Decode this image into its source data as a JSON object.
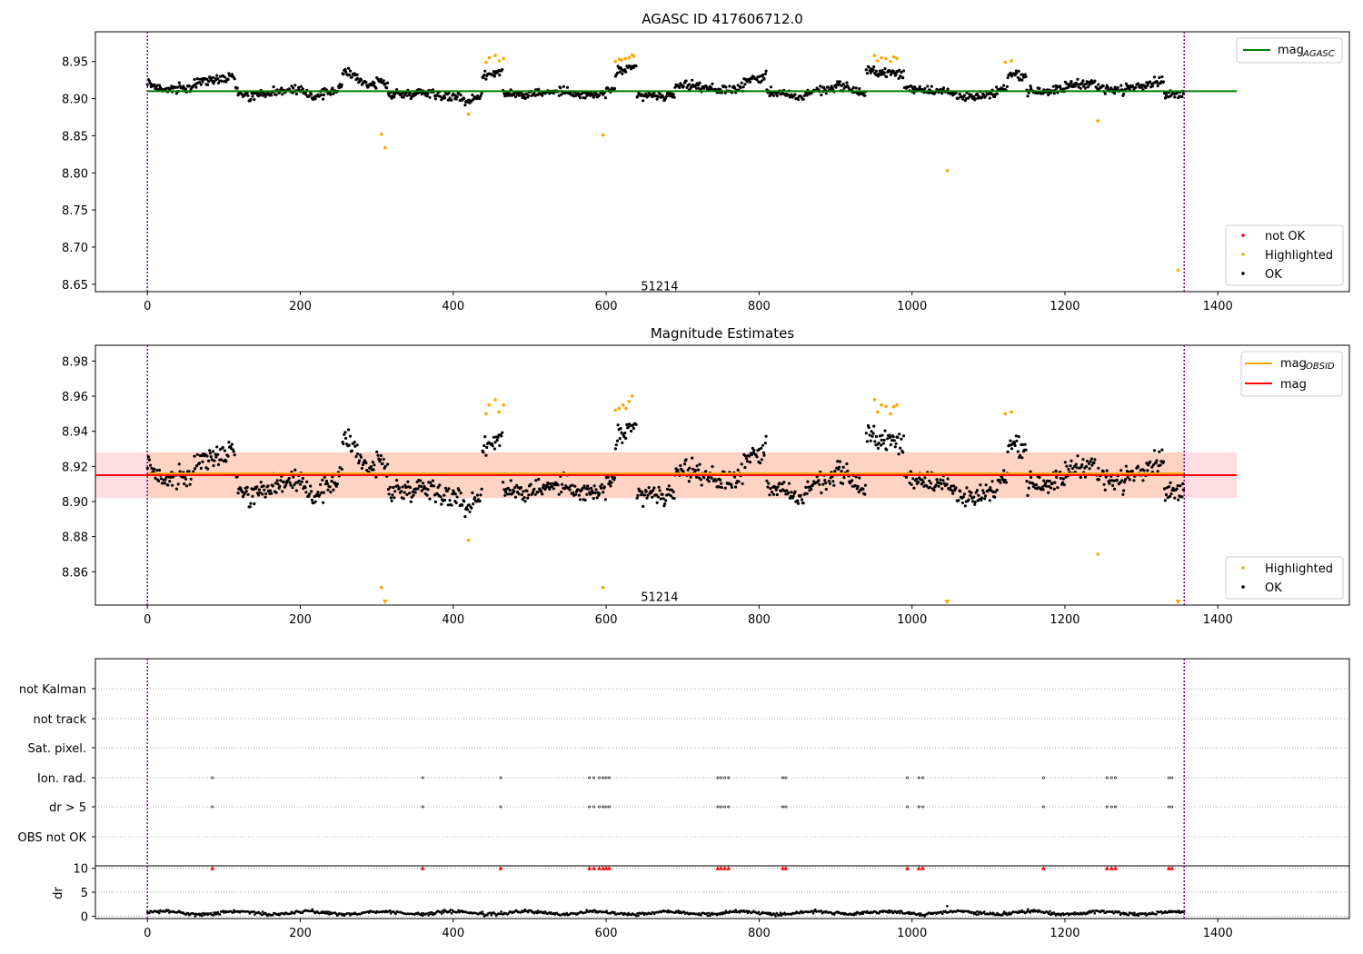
{
  "chart_data": [
    {
      "type": "scatter",
      "title": "AGASC ID 417606712.0",
      "xlim": [
        -68,
        1572
      ],
      "ylim": [
        8.64,
        8.99
      ],
      "xticks": [
        0,
        200,
        400,
        600,
        800,
        1000,
        1200,
        1400
      ],
      "yticks": [
        8.65,
        8.7,
        8.75,
        8.8,
        8.85,
        8.9,
        8.95
      ],
      "ytick_format": 2,
      "vlines": [
        0,
        1356
      ],
      "vline_color": "#800080",
      "annotation": {
        "text": "51214",
        "x": 675,
        "y": 8.648
      },
      "hline": {
        "name": "mag_AGASC",
        "label_main": "mag",
        "label_sub": "AGASC",
        "y": 8.91,
        "x_range": [
          0,
          1425
        ],
        "color": "#008000"
      },
      "legend_lines": [
        {
          "label_main": "mag",
          "label_sub": "AGASC",
          "color": "#008000"
        }
      ],
      "legend_points": [
        {
          "label": "not OK",
          "color": "#ff0000"
        },
        {
          "label": "Highlighted",
          "color": "#ffa500"
        },
        {
          "label": "OK",
          "color": "#000000"
        }
      ],
      "highlighted": [
        [
          306,
          8.852
        ],
        [
          311,
          8.834
        ],
        [
          420,
          8.879
        ],
        [
          443,
          8.949
        ],
        [
          447,
          8.955
        ],
        [
          455,
          8.958
        ],
        [
          460,
          8.951
        ],
        [
          466,
          8.954
        ],
        [
          596,
          8.851
        ],
        [
          612,
          8.95
        ],
        [
          617,
          8.953
        ],
        [
          620,
          8.952
        ],
        [
          625,
          8.954
        ],
        [
          630,
          8.955
        ],
        [
          634,
          8.959
        ],
        [
          636,
          8.957
        ],
        [
          951,
          8.958
        ],
        [
          955,
          8.951
        ],
        [
          960,
          8.955
        ],
        [
          966,
          8.954
        ],
        [
          972,
          8.95
        ],
        [
          976,
          8.956
        ],
        [
          980,
          8.954
        ],
        [
          1046,
          8.803
        ],
        [
          1122,
          8.949
        ],
        [
          1130,
          8.951
        ],
        [
          1243,
          8.87
        ],
        [
          1348,
          8.669
        ]
      ],
      "segments": [
        [
          0,
          20,
          8.922,
          8.912
        ],
        [
          20,
          60,
          8.912,
          8.915
        ],
        [
          60,
          115,
          8.92,
          8.932
        ],
        [
          115,
          135,
          8.912,
          8.9
        ],
        [
          135,
          175,
          8.905,
          8.91
        ],
        [
          175,
          215,
          8.912,
          8.908
        ],
        [
          215,
          255,
          8.902,
          8.915
        ],
        [
          255,
          275,
          8.935,
          8.932
        ],
        [
          275,
          300,
          8.925,
          8.915
        ],
        [
          300,
          315,
          8.928,
          8.915
        ],
        [
          315,
          360,
          8.905,
          8.908
        ],
        [
          360,
          415,
          8.91,
          8.9
        ],
        [
          415,
          438,
          8.895,
          8.905
        ],
        [
          438,
          465,
          8.93,
          8.938
        ],
        [
          465,
          560,
          8.905,
          8.91
        ],
        [
          560,
          600,
          8.905,
          8.905
        ],
        [
          600,
          612,
          8.912,
          8.912
        ],
        [
          612,
          640,
          8.935,
          8.942
        ],
        [
          640,
          690,
          8.905,
          8.902
        ],
        [
          690,
          740,
          8.92,
          8.915
        ],
        [
          740,
          780,
          8.91,
          8.915
        ],
        [
          780,
          810,
          8.925,
          8.93
        ],
        [
          810,
          860,
          8.91,
          8.9
        ],
        [
          860,
          900,
          8.908,
          8.915
        ],
        [
          900,
          940,
          8.92,
          8.905
        ],
        [
          940,
          990,
          8.938,
          8.932
        ],
        [
          990,
          1040,
          8.915,
          8.91
        ],
        [
          1040,
          1065,
          8.91,
          8.905
        ],
        [
          1065,
          1110,
          8.9,
          8.905
        ],
        [
          1110,
          1125,
          8.912,
          8.912
        ],
        [
          1125,
          1150,
          8.935,
          8.93
        ],
        [
          1150,
          1200,
          8.91,
          8.912
        ],
        [
          1200,
          1240,
          8.918,
          8.922
        ],
        [
          1240,
          1280,
          8.915,
          8.91
        ],
        [
          1280,
          1330,
          8.915,
          8.925
        ],
        [
          1330,
          1356,
          8.905,
          8.905
        ]
      ]
    },
    {
      "type": "scatter",
      "title": "Magnitude Estimates",
      "xlim": [
        -68,
        1572
      ],
      "ylim": [
        8.841,
        8.989
      ],
      "xticks": [
        0,
        200,
        400,
        600,
        800,
        1000,
        1200,
        1400
      ],
      "yticks": [
        8.86,
        8.88,
        8.9,
        8.92,
        8.94,
        8.96,
        8.98
      ],
      "ytick_format": 2,
      "vlines": [
        0,
        1356
      ],
      "vline_color": "#800080",
      "annotation": {
        "text": "51214",
        "x": 675,
        "y": 8.846
      },
      "band_outer": {
        "y_range": [
          8.902,
          8.928
        ],
        "x_range": [
          -68,
          1425
        ],
        "color": "#ffdde2"
      },
      "band_inner": {
        "y_range": [
          8.902,
          8.928
        ],
        "x_range": [
          0,
          1356
        ],
        "color": "#fdd3c3"
      },
      "mag_line": {
        "name": "mag",
        "y": 8.915,
        "x_range": [
          -68,
          1425
        ],
        "color": "#ff0000"
      },
      "mag_obsid_line": {
        "name": "mag_OBSID",
        "y": 8.916,
        "x_range": [
          0,
          1356
        ],
        "color": "#ffa500"
      },
      "legend_lines": [
        {
          "label_main": "mag",
          "label_sub": "OBSID",
          "color": "#ffa500"
        },
        {
          "label_main": "mag",
          "label_sub": "",
          "color": "#ff0000"
        }
      ],
      "legend_points": [
        {
          "label": "Highlighted",
          "color": "#ffa500"
        },
        {
          "label": "OK",
          "color": "#000000"
        }
      ],
      "highlighted": [
        [
          306,
          8.851
        ],
        [
          311,
          8.842
        ],
        [
          420,
          8.878
        ],
        [
          443,
          8.95
        ],
        [
          447,
          8.955
        ],
        [
          455,
          8.958
        ],
        [
          460,
          8.951
        ],
        [
          466,
          8.955
        ],
        [
          596,
          8.851
        ],
        [
          612,
          8.952
        ],
        [
          617,
          8.953
        ],
        [
          622,
          8.955
        ],
        [
          626,
          8.953
        ],
        [
          630,
          8.957
        ],
        [
          634,
          8.96
        ],
        [
          951,
          8.958
        ],
        [
          955,
          8.951
        ],
        [
          960,
          8.955
        ],
        [
          966,
          8.954
        ],
        [
          972,
          8.95
        ],
        [
          976,
          8.954
        ],
        [
          980,
          8.955
        ],
        [
          1046,
          8.842
        ],
        [
          1122,
          8.95
        ],
        [
          1130,
          8.951
        ],
        [
          1243,
          8.87
        ],
        [
          1348,
          8.842
        ]
      ],
      "segments": [
        [
          0,
          20,
          8.922,
          8.912
        ],
        [
          20,
          60,
          8.912,
          8.915
        ],
        [
          60,
          115,
          8.92,
          8.932
        ],
        [
          115,
          135,
          8.912,
          8.9
        ],
        [
          135,
          175,
          8.905,
          8.91
        ],
        [
          175,
          215,
          8.912,
          8.908
        ],
        [
          215,
          255,
          8.902,
          8.915
        ],
        [
          255,
          275,
          8.935,
          8.932
        ],
        [
          275,
          300,
          8.925,
          8.915
        ],
        [
          300,
          315,
          8.928,
          8.915
        ],
        [
          315,
          360,
          8.905,
          8.908
        ],
        [
          360,
          415,
          8.91,
          8.9
        ],
        [
          415,
          438,
          8.895,
          8.905
        ],
        [
          438,
          465,
          8.93,
          8.938
        ],
        [
          465,
          560,
          8.905,
          8.91
        ],
        [
          560,
          600,
          8.905,
          8.905
        ],
        [
          600,
          612,
          8.912,
          8.912
        ],
        [
          612,
          640,
          8.935,
          8.942
        ],
        [
          640,
          690,
          8.905,
          8.902
        ],
        [
          690,
          740,
          8.92,
          8.915
        ],
        [
          740,
          780,
          8.91,
          8.915
        ],
        [
          780,
          810,
          8.925,
          8.93
        ],
        [
          810,
          860,
          8.91,
          8.9
        ],
        [
          860,
          900,
          8.908,
          8.915
        ],
        [
          900,
          940,
          8.92,
          8.905
        ],
        [
          940,
          990,
          8.938,
          8.932
        ],
        [
          990,
          1040,
          8.915,
          8.91
        ],
        [
          1040,
          1065,
          8.91,
          8.905
        ],
        [
          1065,
          1110,
          8.9,
          8.905
        ],
        [
          1110,
          1125,
          8.912,
          8.912
        ],
        [
          1125,
          1150,
          8.935,
          8.93
        ],
        [
          1150,
          1200,
          8.91,
          8.912
        ],
        [
          1200,
          1240,
          8.918,
          8.922
        ],
        [
          1240,
          1280,
          8.915,
          8.91
        ],
        [
          1280,
          1330,
          8.915,
          8.925
        ],
        [
          1330,
          1356,
          8.905,
          8.905
        ]
      ]
    },
    {
      "type": "scatter",
      "title": "",
      "xlim": [
        -68,
        1572
      ],
      "xticks": [
        0,
        200,
        400,
        600,
        800,
        1000,
        1200,
        1400
      ],
      "vlines": [
        0,
        1356
      ],
      "vline_color": "#800080",
      "flag_rows": [
        "not Kalman",
        "not track",
        "Sat. pixel.",
        "Ion. rad.",
        "dr > 5",
        "OBS not OK"
      ],
      "flag_points": {
        "Ion. rad.": [
          85,
          360,
          462,
          578,
          584,
          591,
          596,
          600,
          604,
          746,
          750,
          755,
          760,
          831,
          835,
          994,
          1009,
          1014,
          1172,
          1255,
          1261,
          1266,
          1336,
          1340
        ],
        "dr > 5": [
          85,
          360,
          462,
          578,
          584,
          591,
          596,
          600,
          604,
          746,
          750,
          755,
          760,
          831,
          835,
          994,
          1009,
          1014,
          1172,
          1255,
          1261,
          1266,
          1336,
          1340
        ]
      },
      "dr_panel": {
        "ylabel": "dr",
        "yticks": [
          0,
          5,
          10
        ],
        "ylim": [
          -0.5,
          10.5
        ],
        "dr_gt5_value": 10,
        "dr_gt5_x": [
          85,
          360,
          462,
          578,
          584,
          591,
          596,
          600,
          604,
          746,
          750,
          755,
          760,
          831,
          835,
          994,
          1009,
          1014,
          1172,
          1255,
          1261,
          1266,
          1336,
          1340
        ],
        "baseline": 0.7,
        "outlier": [
          1046,
          2.1
        ]
      }
    }
  ]
}
